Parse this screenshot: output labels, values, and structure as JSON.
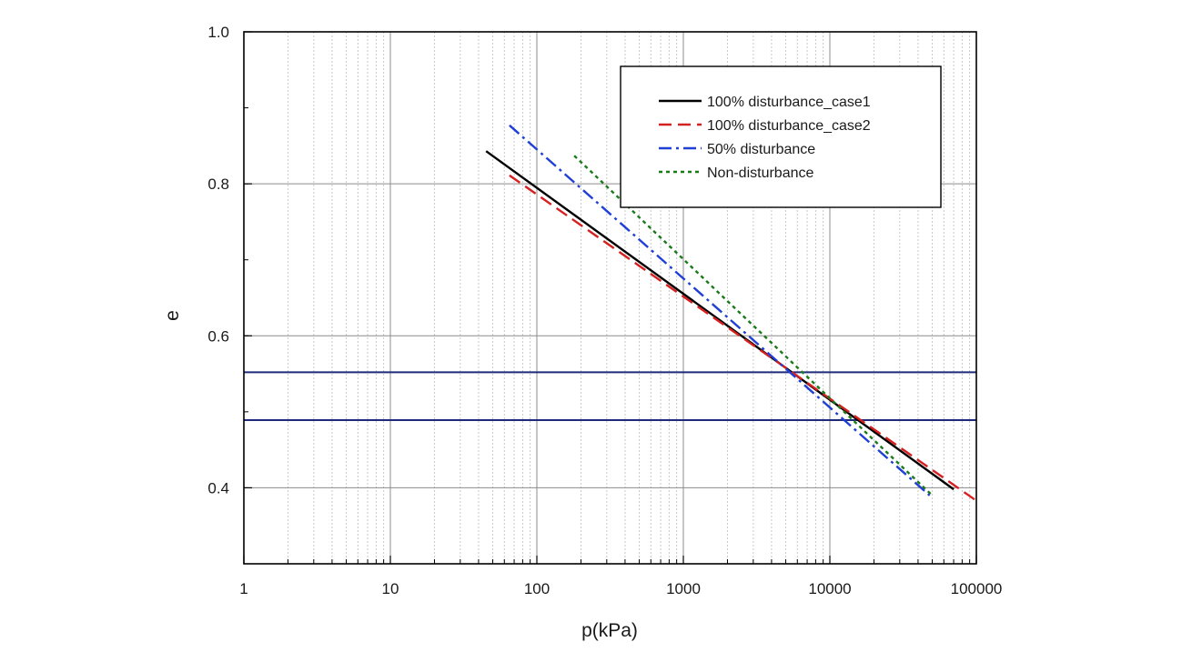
{
  "chart_data": {
    "type": "line",
    "xscale": "log",
    "xlabel": "p(kPa)",
    "ylabel": "e",
    "xlim": [
      1,
      100000
    ],
    "ylim": [
      0.3,
      1.0
    ],
    "xticks": [
      1,
      10,
      100,
      1000,
      10000,
      100000
    ],
    "xtick_labels": [
      "1",
      "10",
      "100",
      "1000",
      "10000",
      "100000"
    ],
    "yticks": [
      0.4,
      0.6,
      0.8,
      1.0
    ],
    "ytick_labels": [
      "0.4",
      "0.6",
      "0.8",
      "1.0"
    ],
    "grid": true,
    "legend_position": "top-right",
    "reference_lines": [
      {
        "y": 0.552,
        "color": "#1f2a7a"
      },
      {
        "y": 0.489,
        "color": "#1f2a7a"
      }
    ],
    "series": [
      {
        "name": "100% disturbance_case1",
        "color": "#000000",
        "dash": "solid",
        "x": [
          45,
          70000
        ],
        "y": [
          0.843,
          0.398
        ]
      },
      {
        "name": "100% disturbance_case2",
        "color": "#d62020",
        "dash": "dashed",
        "x": [
          65,
          100000
        ],
        "y": [
          0.811,
          0.383
        ]
      },
      {
        "name": "50% disturbance",
        "color": "#1f3fd6",
        "dash": "dashdot",
        "x": [
          65,
          48000
        ],
        "y": [
          0.877,
          0.39
        ]
      },
      {
        "name": "Non-disturbance",
        "color": "#1a7a1a",
        "dash": "dotted",
        "x": [
          180,
          50000
        ],
        "y": [
          0.837,
          0.39
        ]
      }
    ]
  }
}
